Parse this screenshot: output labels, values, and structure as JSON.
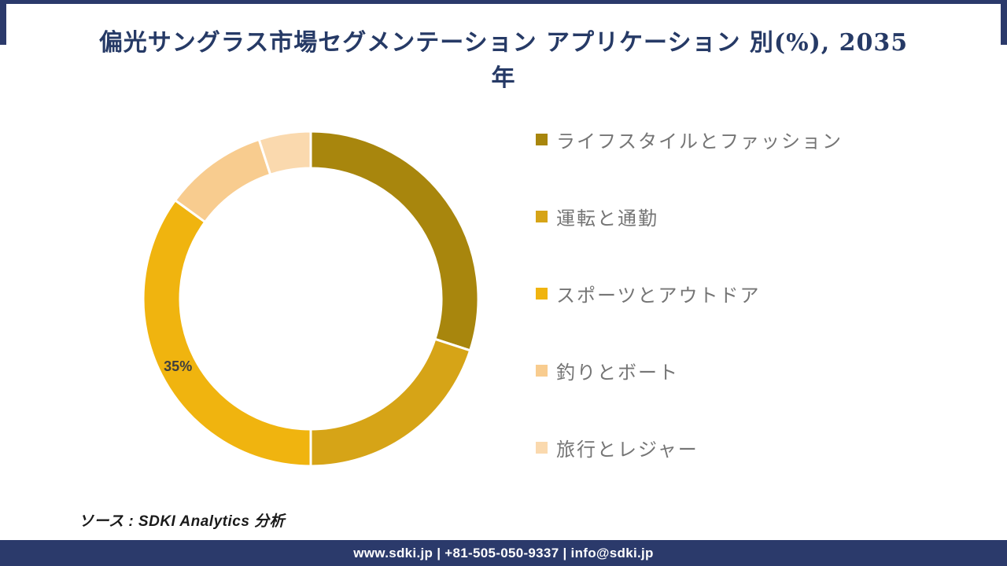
{
  "title": {
    "line1": "偏光サングラス市場セグメンテーション アプリケーション 別(%), 2035",
    "line2": "年",
    "color": "#263A66"
  },
  "chart_data": {
    "type": "pie",
    "subtype": "donut",
    "title": "偏光サングラス市場セグメンテーション アプリケーション 別(%), 2035年",
    "unit": "%",
    "legend_position": "right",
    "start_angle_deg": 0,
    "direction": "clockwise",
    "inner_radius_ratio": 0.78,
    "segments": [
      {
        "label": "ライフスタイルとファッション",
        "value": 30,
        "color": "#A8860D",
        "shown_label": ""
      },
      {
        "label": "運転と通勤",
        "value": 20,
        "color": "#D6A417",
        "shown_label": ""
      },
      {
        "label": "スポーツとアウトドア",
        "value": 35,
        "color": "#F0B40F",
        "shown_label": "35%"
      },
      {
        "label": "釣りとボート",
        "value": 10,
        "color": "#F8CC8F",
        "shown_label": ""
      },
      {
        "label": "旅行とレジャー",
        "value": 5,
        "color": "#FAD9AE",
        "shown_label": ""
      }
    ],
    "data_label_color": "#3F3F3F"
  },
  "source": {
    "text": "ソース : SDKI Analytics 分析"
  },
  "footer": {
    "text": "www.sdki.jp | +81-505-050-9337 | info@sdki.jp",
    "bg": "#2B3A6B"
  }
}
